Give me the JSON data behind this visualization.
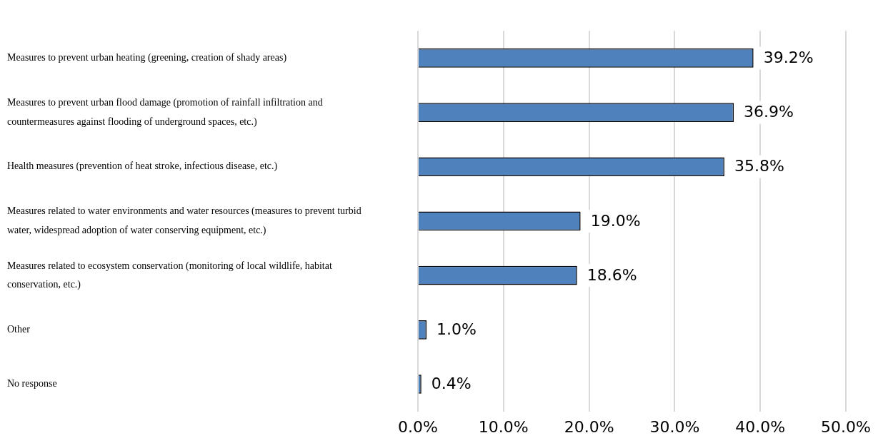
{
  "chart_data": {
    "type": "bar",
    "orientation": "horizontal",
    "categories": [
      "Measures to prevent urban heating (greening, creation of shady areas)",
      "Measures to prevent urban flood damage (promotion of rainfall infiltration and countermeasures against flooding of underground spaces, etc.)",
      "Health measures (prevention of heat stroke, infectious disease, etc.)",
      "Measures related to water environments and water resources (measures to prevent turbid water, widespread adoption of water conserving equipment, etc.)",
      "Measures related to ecosystem conservation (monitoring of local wildlife, habitat conservation, etc.)",
      "Other",
      "No response"
    ],
    "values": [
      39.2,
      36.9,
      35.8,
      19.0,
      18.6,
      1.0,
      0.4
    ],
    "value_labels": [
      "39.2%",
      "36.9%",
      "35.8%",
      "19.0%",
      "18.6%",
      "1.0%",
      "0.4%"
    ],
    "color": "#4f81bd",
    "xlim": [
      0,
      50
    ],
    "xticks": [
      {
        "value": 0,
        "label": "0.0%"
      },
      {
        "value": 10,
        "label": "10.0%"
      },
      {
        "value": 20,
        "label": "20.0%"
      },
      {
        "value": 30,
        "label": "30.0%"
      },
      {
        "value": 40,
        "label": "40.0%"
      },
      {
        "value": 50,
        "label": "50.0%"
      }
    ],
    "grid": "x",
    "legend": false
  }
}
